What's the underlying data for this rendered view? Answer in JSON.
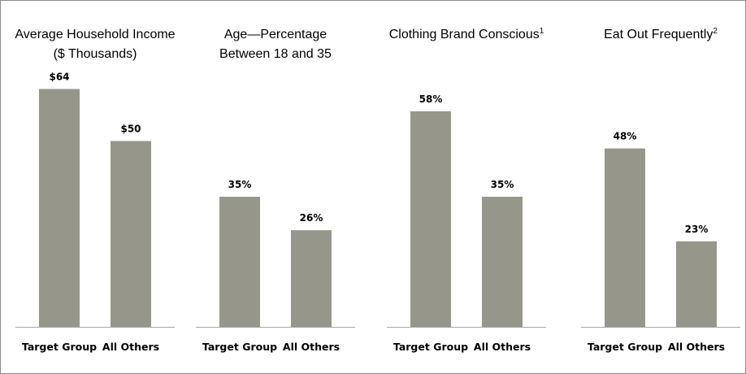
{
  "chart_data": [
    {
      "type": "bar",
      "title_lines": [
        "Average Household Income",
        "($ Thousands)"
      ],
      "title_sup": "",
      "categories": [
        "Target Group",
        "All Others"
      ],
      "values": [
        64,
        50
      ],
      "labels": [
        "$64",
        "$50"
      ],
      "ylim": [
        0,
        70
      ]
    },
    {
      "type": "bar",
      "title_lines": [
        "Age—Percentage",
        "Between 18 and 35"
      ],
      "title_sup": "",
      "categories": [
        "Target Group",
        "All Others"
      ],
      "values": [
        35,
        26
      ],
      "labels": [
        "35%",
        "26%"
      ],
      "ylim": [
        0,
        70
      ]
    },
    {
      "type": "bar",
      "title_lines": [
        "Clothing Brand Conscious"
      ],
      "title_sup": "1",
      "categories": [
        "Target Group",
        "All Others"
      ],
      "values": [
        58,
        35
      ],
      "labels": [
        "58%",
        "35%"
      ],
      "ylim": [
        0,
        70
      ]
    },
    {
      "type": "bar",
      "title_lines": [
        "Eat Out Frequently"
      ],
      "title_sup": "2",
      "categories": [
        "Target Group",
        "All Others"
      ],
      "values": [
        48,
        23
      ],
      "labels": [
        "48%",
        "23%"
      ],
      "ylim": [
        0,
        70
      ]
    }
  ]
}
